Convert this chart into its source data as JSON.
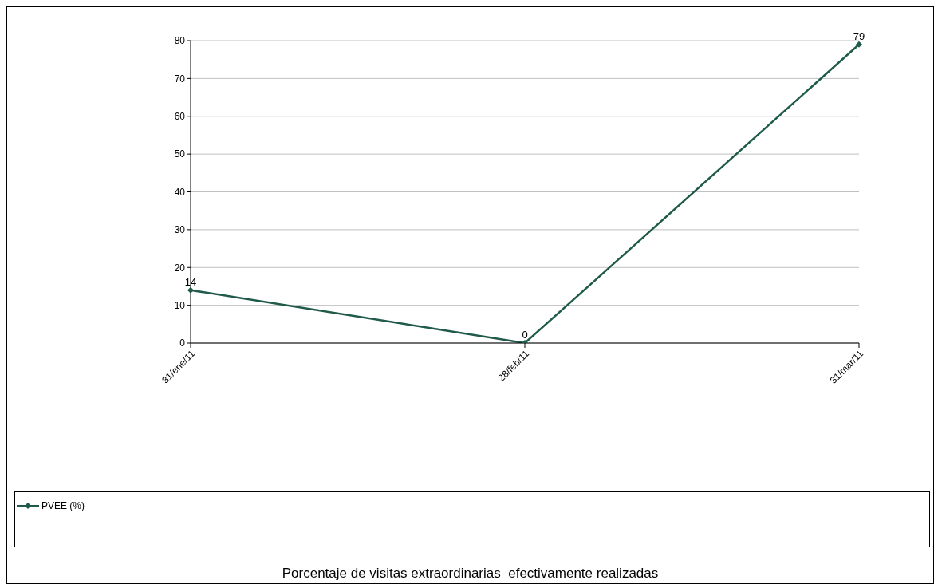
{
  "chart_data": {
    "type": "line",
    "title": "Porcentaje de visitas extraordinarias  efectivamente realizadas",
    "categories": [
      "31/ene/11",
      "28/feb/11",
      "31/mar/11"
    ],
    "series": [
      {
        "name": "PVEE (%)",
        "color": "#1f5a4a",
        "values": [
          14,
          0,
          79
        ]
      }
    ],
    "ylim": [
      0,
      80
    ],
    "yticks": [
      0,
      10,
      20,
      30,
      40,
      50,
      60,
      70,
      80
    ],
    "grid": "y",
    "legend": "bottom",
    "marker": "diamond",
    "data_labels": true
  }
}
